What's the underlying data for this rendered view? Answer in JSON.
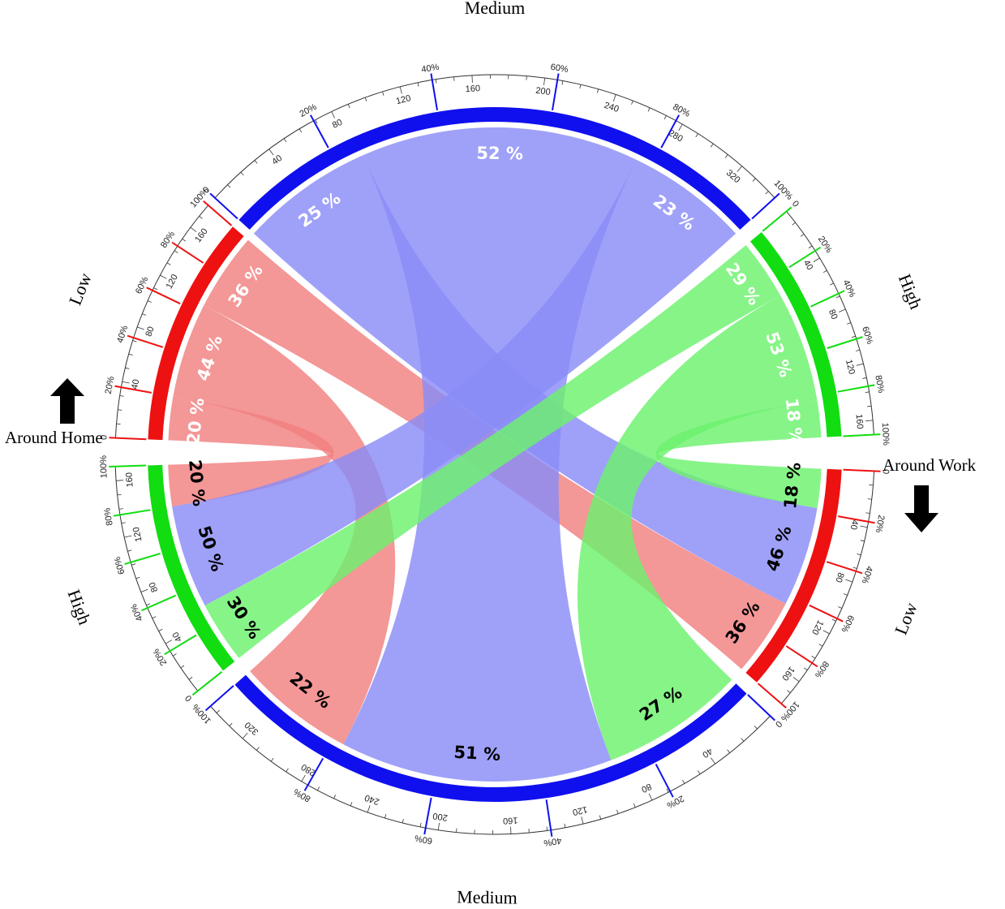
{
  "legend": {
    "home_label": "Around Home",
    "work_label": "Around Work"
  },
  "colors": {
    "low": "#ee1111",
    "medium": "#1010ee",
    "high": "#11dd11",
    "ribbon_low": "#f28080",
    "ribbon_medium": "#8a8cf7",
    "ribbon_high": "#6cf26e"
  },
  "sectors": [
    {
      "id": "home-low",
      "label": "Low",
      "group": "home",
      "level": "low",
      "total": 180
    },
    {
      "id": "home-medium",
      "label": "Medium",
      "group": "home",
      "level": "medium",
      "total": 345
    },
    {
      "id": "home-high",
      "label": "High",
      "group": "home",
      "level": "high",
      "total": 170
    },
    {
      "id": "work-low",
      "label": "Low",
      "group": "work",
      "level": "low",
      "total": 180
    },
    {
      "id": "work-medium",
      "label": "Medium",
      "group": "work",
      "level": "medium",
      "total": 345
    },
    {
      "id": "work-high",
      "label": "High",
      "group": "work",
      "level": "high",
      "total": 170
    }
  ],
  "percent_ticks": [
    "0",
    "20%",
    "40%",
    "60%",
    "80%",
    "100%"
  ],
  "flows": [
    {
      "from": "home-low",
      "to": "work-low",
      "from_pct": "36 %",
      "to_pct": "36 %",
      "from_share": 0.36,
      "to_share": 0.36
    },
    {
      "from": "home-low",
      "to": "work-medium",
      "from_pct": "44 %",
      "to_pct": "22 %",
      "from_share": 0.44,
      "to_share": 0.22
    },
    {
      "from": "home-low",
      "to": "work-high",
      "from_pct": "20 %",
      "to_pct": "20 %",
      "from_share": 0.2,
      "to_share": 0.2
    },
    {
      "from": "home-medium",
      "to": "work-low",
      "from_pct": "25 %",
      "to_pct": "46 %",
      "from_share": 0.25,
      "to_share": 0.46
    },
    {
      "from": "home-medium",
      "to": "work-medium",
      "from_pct": "52 %",
      "to_pct": "51 %",
      "from_share": 0.52,
      "to_share": 0.51
    },
    {
      "from": "home-medium",
      "to": "work-high",
      "from_pct": "23 %",
      "to_pct": "50 %",
      "from_share": 0.23,
      "to_share": 0.5
    },
    {
      "from": "home-high",
      "to": "work-low",
      "from_pct": "18 %",
      "to_pct": "18 %",
      "from_share": 0.18,
      "to_share": 0.18
    },
    {
      "from": "home-high",
      "to": "work-medium",
      "from_pct": "53 %",
      "to_pct": "27 %",
      "from_share": 0.53,
      "to_share": 0.27
    },
    {
      "from": "home-high",
      "to": "work-high",
      "from_pct": "29 %",
      "to_pct": "30 %",
      "from_share": 0.29,
      "to_share": 0.3
    }
  ]
}
